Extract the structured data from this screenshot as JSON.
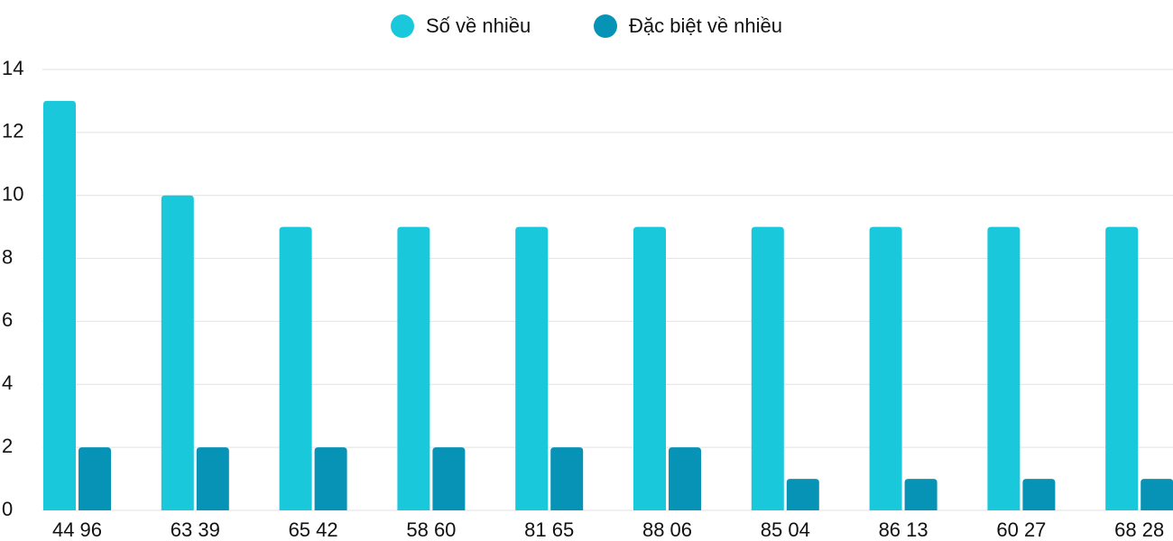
{
  "chart_data": {
    "type": "bar",
    "categories": [
      "44 96",
      "63 39",
      "65 42",
      "58 60",
      "81 65",
      "88 06",
      "85 04",
      "86 13",
      "60 27",
      "68 28"
    ],
    "series": [
      {
        "name": "Số về nhiều",
        "color": "#1ac8db",
        "values": [
          13,
          10,
          9,
          9,
          9,
          9,
          9,
          9,
          9,
          9
        ]
      },
      {
        "name": "Đặc biệt về nhiều",
        "color": "#0793b5",
        "values": [
          2,
          2,
          2,
          2,
          2,
          2,
          1,
          1,
          1,
          1
        ]
      }
    ],
    "ylim": [
      0,
      14
    ],
    "yticks": [
      0,
      2,
      4,
      6,
      8,
      10,
      12,
      14
    ],
    "grid": true,
    "legend": "top"
  }
}
